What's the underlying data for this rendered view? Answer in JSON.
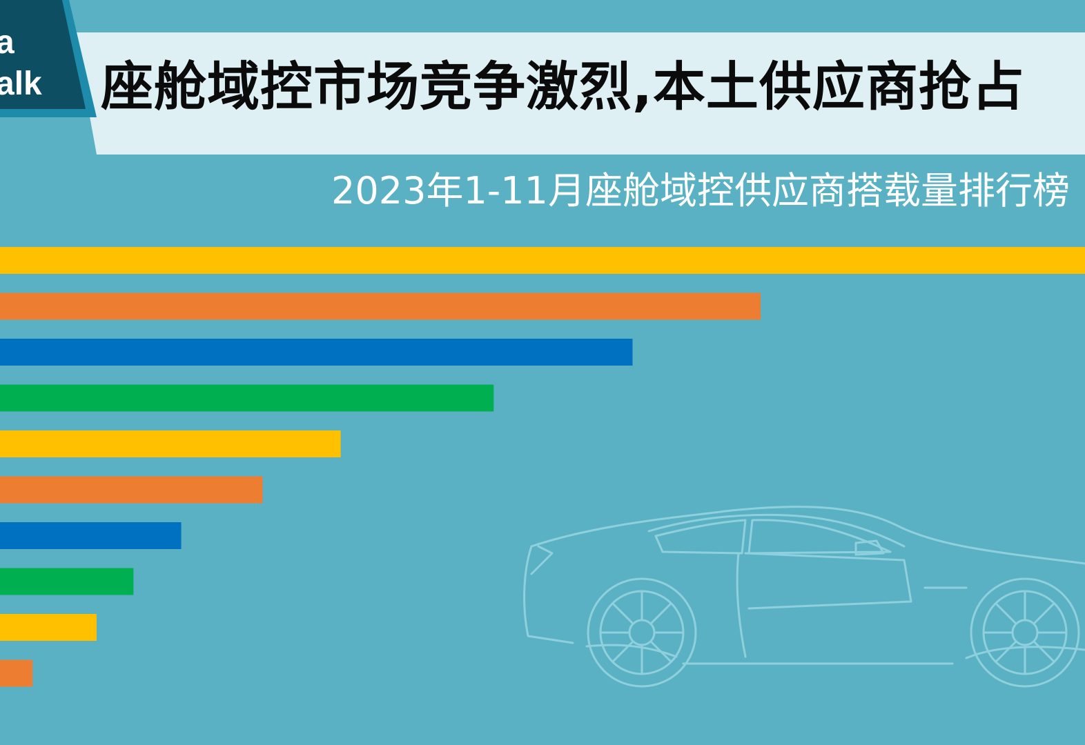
{
  "logo": {
    "line1": "a",
    "line2": "alk"
  },
  "header": {
    "title": "座舱域控市场竞争激烈,本土供应商抢占",
    "subtitle": "2023年1-11月座舱域控供应商搭载量排行榜"
  },
  "colors": {
    "background": "#5bb1c4",
    "title_band": "#dff0f4",
    "logo_dark": "#0e4e63",
    "logo_border": "#1e8bab",
    "yellow": "#ffc000",
    "orange": "#ed7d31",
    "blue": "#0070c0",
    "green": "#00b050",
    "car_outline": "#8fd0de"
  },
  "chart_data": {
    "type": "bar",
    "orientation": "horizontal",
    "values": [
      100,
      70.1,
      58.3,
      45.5,
      31.4,
      24.2,
      16.7,
      12.3,
      8.9,
      3.0
    ],
    "bar_colors": [
      "#ffc000",
      "#ed7d31",
      "#0070c0",
      "#00b050",
      "#ffc000",
      "#ed7d31",
      "#0070c0",
      "#00b050",
      "#ffc000",
      "#ed7d31"
    ],
    "xlim": [
      0,
      100
    ],
    "grid": false,
    "legend": "none"
  }
}
